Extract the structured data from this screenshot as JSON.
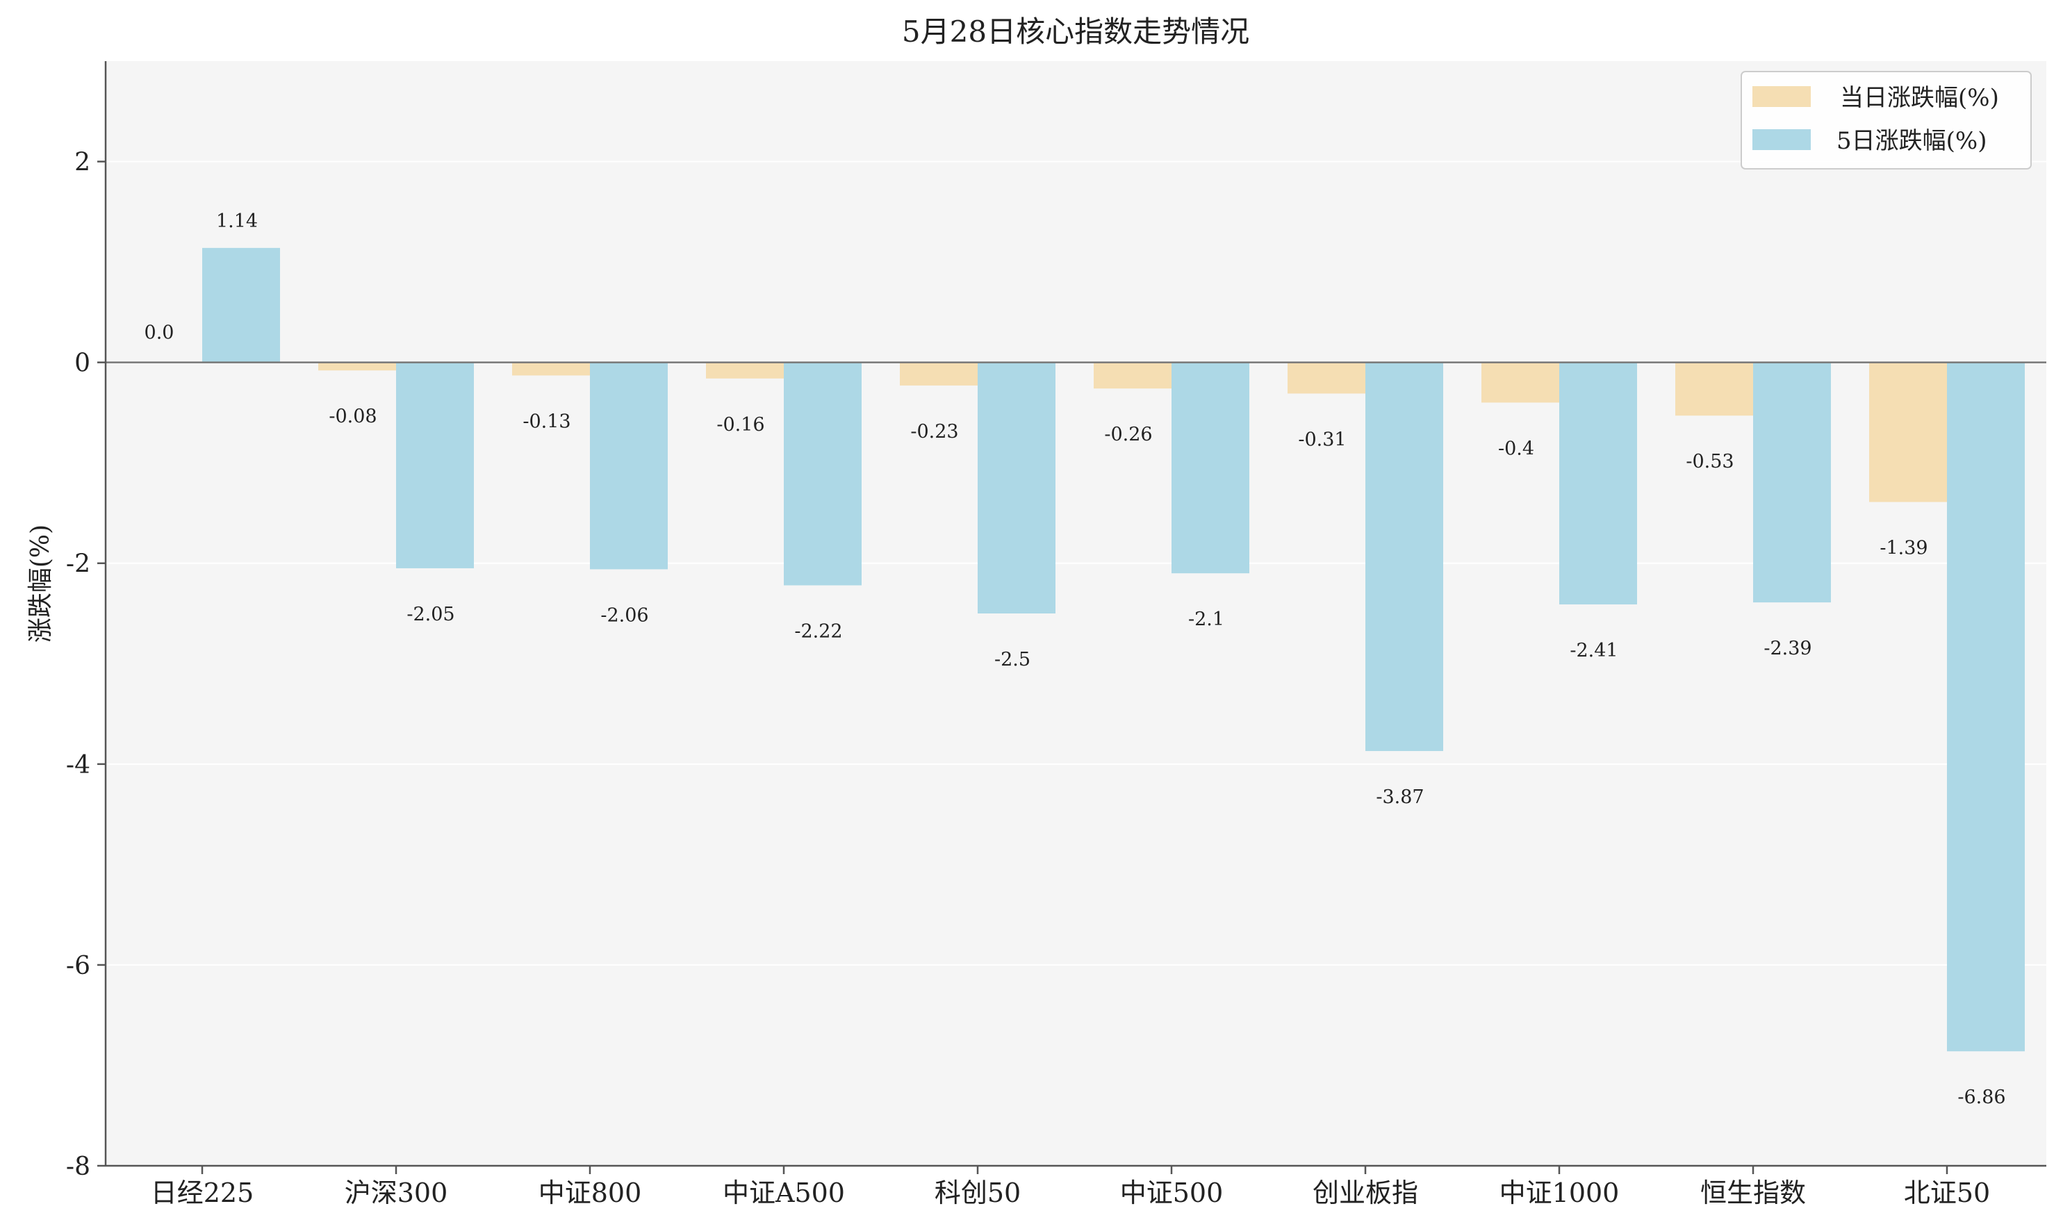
{
  "chart_data": {
    "type": "bar",
    "title": "5月28日核心指数走势情况",
    "xlabel": "",
    "ylabel": "涨跌幅(%)",
    "ylim": [
      -8,
      3
    ],
    "yticks": [
      2,
      0,
      -2,
      -4,
      -6,
      -8
    ],
    "grid": true,
    "legend_position": "top-right",
    "categories": [
      "日经225",
      "沪深300",
      "中证800",
      "中证A500",
      "科创50",
      "中证500",
      "创业板指",
      "中证1000",
      "恒生指数",
      "北证50"
    ],
    "series": [
      {
        "name": "当日涨跌幅(%)",
        "color": "#f5deb3",
        "values": [
          0.0,
          -0.08,
          -0.13,
          -0.16,
          -0.23,
          -0.26,
          -0.31,
          -0.4,
          -0.53,
          -1.39
        ],
        "labels": [
          "0.0",
          "-0.08",
          "-0.13",
          "-0.16",
          "-0.23",
          "-0.26",
          "-0.31",
          "-0.4",
          "-0.53",
          "-1.39"
        ]
      },
      {
        "name": "5日涨跌幅(%)",
        "color": "#add8e6",
        "values": [
          1.14,
          -2.05,
          -2.06,
          -2.22,
          -2.5,
          -2.1,
          -3.87,
          -2.41,
          -2.39,
          -6.86
        ],
        "labels": [
          "1.14",
          "-2.05",
          "-2.06",
          "-2.22",
          "-2.5",
          "-2.1",
          "-3.87",
          "-2.41",
          "-2.39",
          "-6.86"
        ]
      }
    ]
  }
}
